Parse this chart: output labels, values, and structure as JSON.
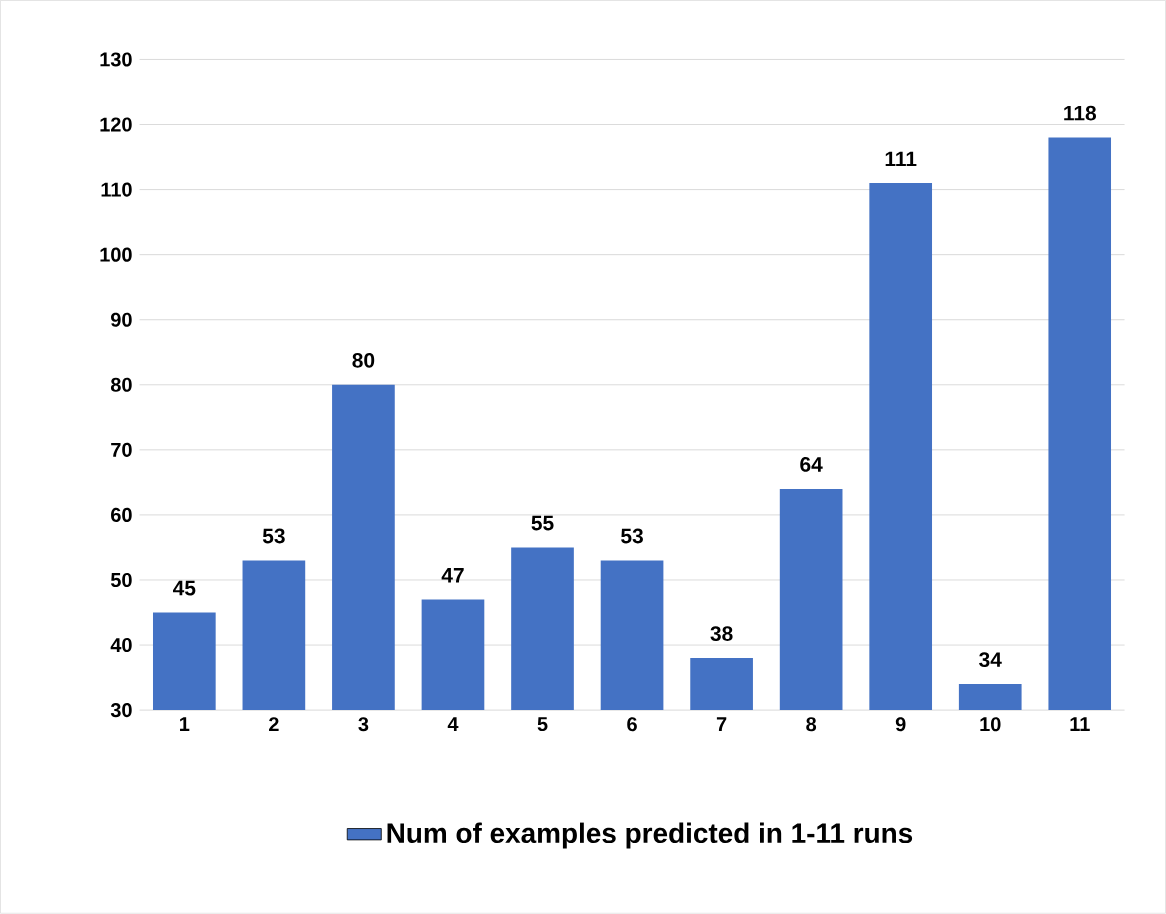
{
  "chart_data": {
    "type": "bar",
    "categories": [
      "1",
      "2",
      "3",
      "4",
      "5",
      "6",
      "7",
      "8",
      "9",
      "10",
      "11"
    ],
    "series": [
      {
        "name": "Num of examples predicted in 1-11 runs",
        "color": "#4472c4",
        "values": [
          45,
          53,
          80,
          47,
          55,
          53,
          38,
          64,
          111,
          34,
          118
        ]
      }
    ],
    "ylim": [
      30,
      130
    ],
    "yticks": [
      30,
      40,
      50,
      60,
      70,
      80,
      90,
      100,
      110,
      120,
      130
    ],
    "grid": "y",
    "legend": "bottom",
    "data_labels": true
  }
}
